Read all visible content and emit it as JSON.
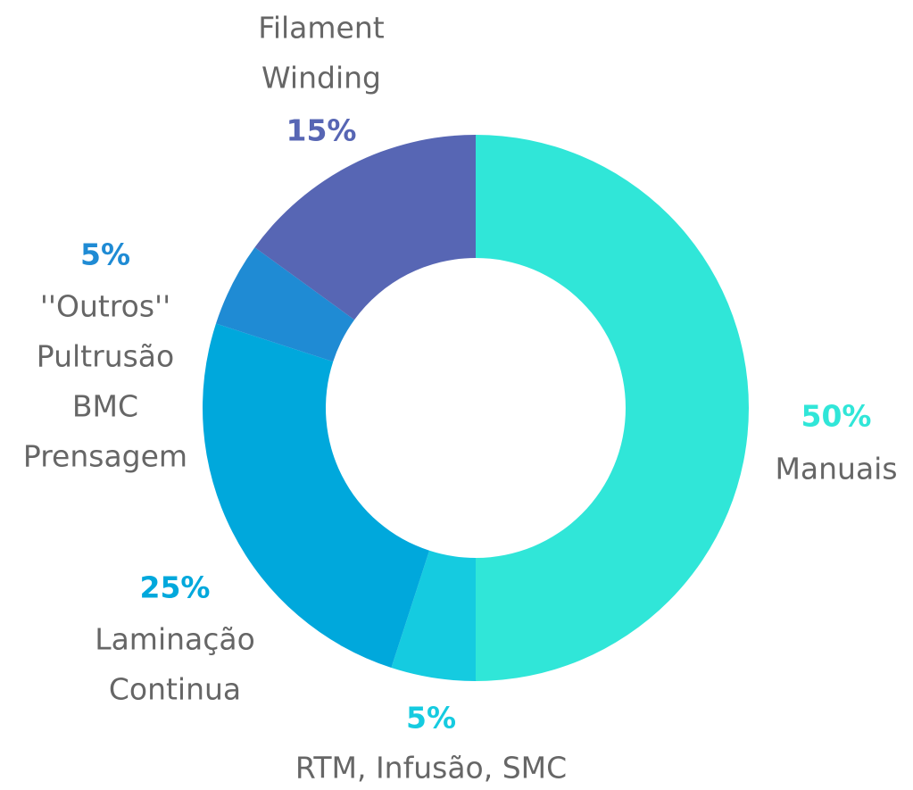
{
  "chart_data": {
    "type": "donut",
    "categories": [
      [
        "Manuais"
      ],
      [
        "RTM, Infusão, SMC"
      ],
      [
        "Laminação",
        "Continua"
      ],
      [
        "''Outros''",
        "Pultrusão",
        "BMC",
        "Prensagem"
      ],
      [
        "Filament",
        "Winding"
      ]
    ],
    "values": [
      50,
      5,
      25,
      5,
      15
    ],
    "value_labels": [
      "50%",
      "5%",
      "25%",
      "5%",
      "15%"
    ],
    "colors": [
      "#30e6d8",
      "#15cbe0",
      "#00a8dc",
      "#1f8bd4",
      "#5766b4"
    ]
  }
}
